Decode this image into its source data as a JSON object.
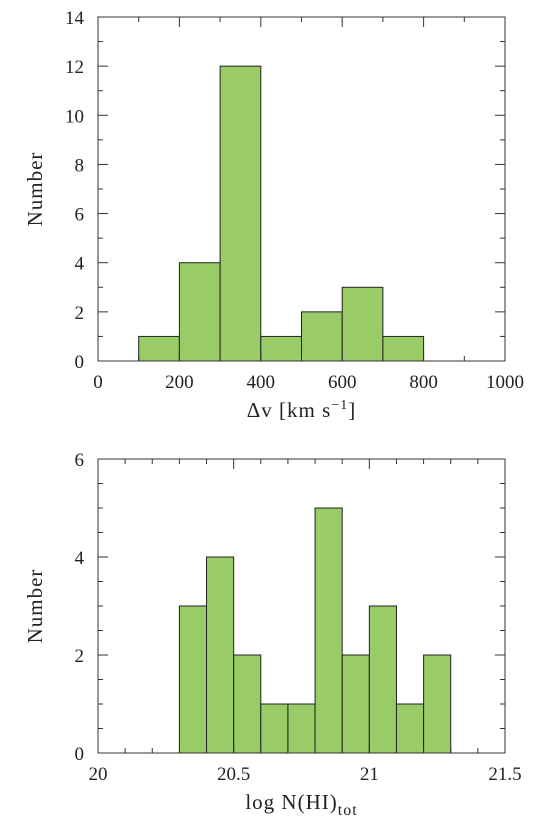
{
  "chart_data": [
    {
      "type": "bar",
      "bin_edges": [
        100,
        200,
        300,
        400,
        500,
        600,
        700,
        800
      ],
      "values": [
        1,
        4,
        12,
        1,
        2,
        3,
        1
      ],
      "xlim": [
        0,
        1000
      ],
      "ylim": [
        0,
        14
      ],
      "xticks": [
        0,
        200,
        400,
        600,
        800,
        1000
      ],
      "yticks": [
        0,
        2,
        4,
        6,
        8,
        10,
        12,
        14
      ],
      "xtick_labels": [
        "0",
        "200",
        "400",
        "600",
        "800",
        "1000"
      ],
      "ytick_labels": [
        "0",
        "2",
        "4",
        "6",
        "8",
        "10",
        "12",
        "14"
      ],
      "xminor_step": 100,
      "yminor_step": 1,
      "xlabel": {
        "prefix": "Δv [km s",
        "sup": "−1",
        "suffix": "]"
      },
      "ylabel": "Number",
      "color": "#99cc66"
    },
    {
      "type": "bar",
      "bin_edges": [
        20.3,
        20.4,
        20.5,
        20.6,
        20.7,
        20.8,
        20.9,
        21.0,
        21.1,
        21.2,
        21.3
      ],
      "values": [
        3,
        4,
        2,
        1,
        1,
        5,
        2,
        3,
        1,
        2
      ],
      "xlim": [
        20,
        21.5
      ],
      "ylim": [
        0,
        6
      ],
      "xticks": [
        20,
        20.5,
        21,
        21.5
      ],
      "yticks": [
        0,
        2,
        4,
        6
      ],
      "xtick_labels": [
        "20",
        "20.5",
        "21",
        "21.5"
      ],
      "ytick_labels": [
        "0",
        "2",
        "4",
        "6"
      ],
      "xminor_step": 0.1,
      "yminor_step": 0.5,
      "xlabel": {
        "prefix": "log N(HI)",
        "sub": "tot"
      },
      "ylabel": "Number",
      "color": "#99cc66"
    }
  ]
}
